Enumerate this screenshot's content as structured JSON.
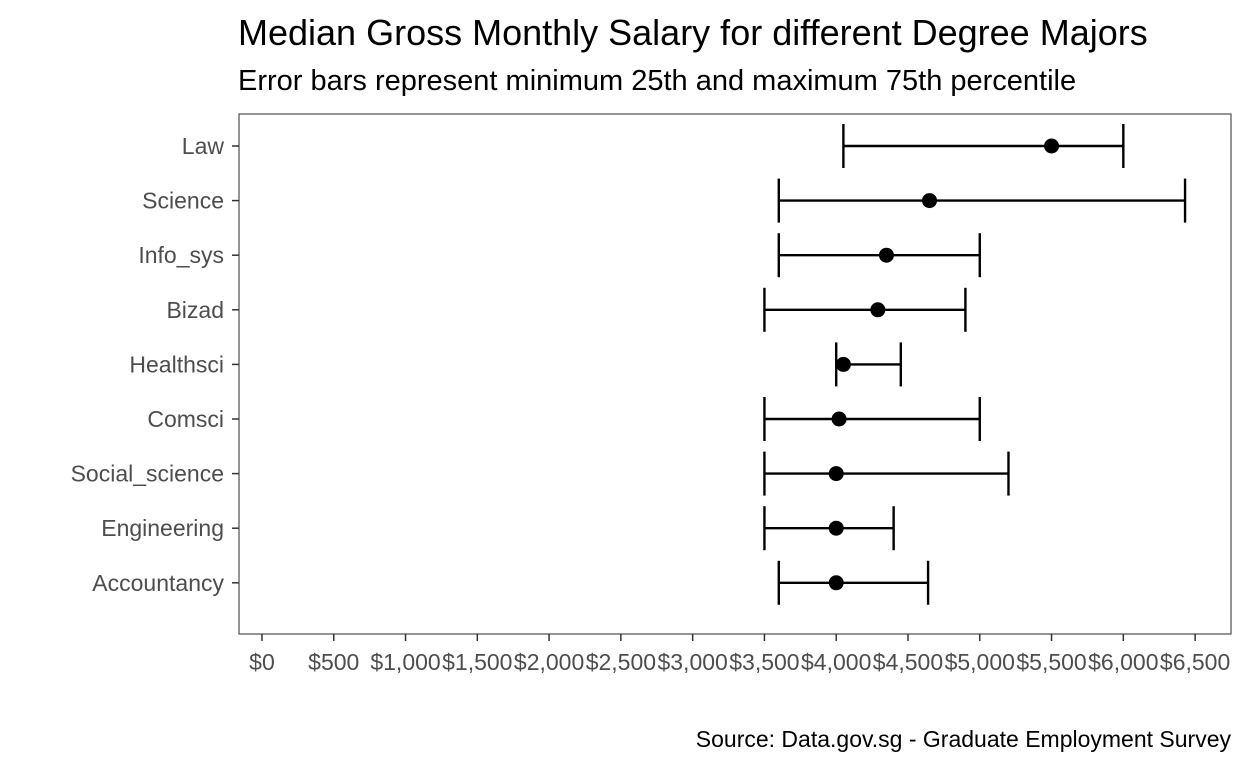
{
  "chart_data": {
    "type": "scatter",
    "title": "Median Gross Monthly Salary for different Degree Majors",
    "subtitle": "Error bars represent minimum 25th and maximum 75th percentile",
    "caption": "Source: Data.gov.sg - Graduate Employment Survey",
    "xlabel": "",
    "ylabel": "",
    "xlim": [
      -160,
      6750
    ],
    "x_ticks": [
      0,
      500,
      1000,
      1500,
      2000,
      2500,
      3000,
      3500,
      4000,
      4500,
      5000,
      5500,
      6000,
      6500
    ],
    "x_tick_labels": [
      "$0",
      "$500",
      "$1,000",
      "$1,500",
      "$2,000",
      "$2,500",
      "$3,000",
      "$3,500",
      "$4,000",
      "$4,500",
      "$5,000",
      "$5,500",
      "$6,000",
      "$6,500"
    ],
    "grid": false,
    "points": [
      {
        "category": "Law",
        "median": 5500,
        "min_25th": 4050,
        "max_75th": 6000
      },
      {
        "category": "Science",
        "median": 4650,
        "min_25th": 3600,
        "max_75th": 6430
      },
      {
        "category": "Info_sys",
        "median": 4350,
        "min_25th": 3600,
        "max_75th": 5000
      },
      {
        "category": "Bizad",
        "median": 4290,
        "min_25th": 3500,
        "max_75th": 4900
      },
      {
        "category": "Healthsci",
        "median": 4050,
        "min_25th": 4000,
        "max_75th": 4450
      },
      {
        "category": "Comsci",
        "median": 4020,
        "min_25th": 3500,
        "max_75th": 5000
      },
      {
        "category": "Social_science",
        "median": 4000,
        "min_25th": 3500,
        "max_75th": 5200
      },
      {
        "category": "Engineering",
        "median": 4000,
        "min_25th": 3500,
        "max_75th": 4400
      },
      {
        "category": "Accountancy",
        "median": 4000,
        "min_25th": 3600,
        "max_75th": 4640
      }
    ]
  }
}
